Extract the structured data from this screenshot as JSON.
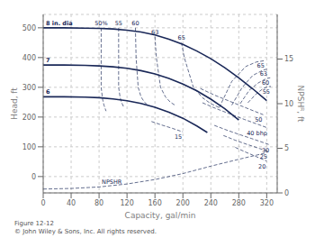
{
  "chart_data": {
    "type": "line",
    "xlabel": "Capacity, gal/min",
    "ylabel": "Head, ft",
    "y2label": "NPSHᴿ, ft",
    "caption": "Figure 12-12\n© John Wiley & Sons, Inc. All rights reserved.",
    "xlim": [
      0,
      335
    ],
    "ylim": [
      -55,
      545
    ],
    "xticks": [
      0,
      40,
      80,
      120,
      160,
      200,
      240,
      280,
      320
    ],
    "yticks": [
      0,
      100,
      200,
      300,
      400,
      500
    ],
    "y2lim": [
      0,
      20
    ],
    "y2ticks": [
      0,
      5,
      10,
      15
    ],
    "grid": true,
    "color": "#1a2858",
    "series": [
      {
        "name": "8 in. dia",
        "line_style": "solid",
        "x": [
          0,
          30,
          60,
          80,
          100,
          120,
          140,
          160,
          180,
          200,
          220,
          240,
          260,
          280,
          300,
          320
        ],
        "values": [
          500,
          500,
          499,
          498,
          496,
          492,
          486,
          476,
          462,
          444,
          422,
          396,
          366,
          332,
          295,
          255
        ]
      },
      {
        "name": "7",
        "line_style": "solid",
        "x": [
          0,
          30,
          60,
          80,
          100,
          120,
          140,
          160,
          180,
          200,
          220,
          240,
          260,
          280
        ],
        "values": [
          375,
          375,
          374,
          372,
          369,
          364,
          356,
          345,
          330,
          311,
          288,
          260,
          228,
          190
        ]
      },
      {
        "name": "6",
        "line_style": "solid",
        "x": [
          0,
          30,
          60,
          80,
          100,
          120,
          140,
          160,
          180,
          200,
          220,
          235
        ],
        "values": [
          268,
          268,
          267,
          265,
          261,
          255,
          246,
          233,
          216,
          196,
          170,
          148
        ]
      },
      {
        "name": "50%",
        "line_style": "dashed",
        "x": [
          83,
          83,
          83,
          85,
          87,
          90
        ],
        "values": [
          500,
          400,
          300,
          260,
          240,
          220
        ]
      },
      {
        "name": "55",
        "line_style": "dashed",
        "x": [
          108,
          108,
          108,
          110,
          112,
          115
        ],
        "values": [
          500,
          400,
          300,
          268,
          250,
          235
        ]
      },
      {
        "name": "60",
        "line_style": "dashed",
        "x": [
          132,
          133,
          136,
          140,
          145,
          150
        ],
        "values": [
          500,
          400,
          300,
          268,
          250,
          240
        ]
      },
      {
        "name": "63",
        "line_style": "dashed",
        "x": [
          160,
          162,
          168,
          175,
          182,
          190
        ],
        "values": [
          470,
          400,
          300,
          268,
          250,
          238
        ]
      },
      {
        "name": "65",
        "line_style": "dashed",
        "x": [
          198,
          202,
          215,
          228,
          240,
          252
        ],
        "values": [
          450,
          400,
          300,
          265,
          245,
          232
        ]
      },
      {
        "name": "65",
        "line_style": "dashed",
        "x": [
          252,
          270,
          290,
          305,
          318
        ],
        "values": [
          232,
          320,
          370,
          385,
          390
        ]
      },
      {
        "name": "63",
        "line_style": "dashed",
        "x": [
          270,
          285,
          300,
          315,
          322
        ],
        "values": [
          240,
          300,
          340,
          358,
          362
        ]
      },
      {
        "name": "60",
        "line_style": "dashed",
        "x": [
          282,
          295,
          308,
          320,
          325
        ],
        "values": [
          245,
          290,
          315,
          330,
          332
        ]
      },
      {
        "name": "55",
        "line_style": "dashed",
        "x": [
          293,
          305,
          315,
          322,
          326
        ],
        "values": [
          248,
          278,
          296,
          302,
          303
        ]
      },
      {
        "name": "15",
        "line_style": "dashed",
        "x": [
          155,
          170,
          185,
          200
        ],
        "values": [
          185,
          173,
          162,
          150
        ]
      },
      {
        "name": "20",
        "line_style": "dashed",
        "x": [
          275,
          290,
          305,
          320
        ],
        "values": [
          98,
          82,
          67,
          52
        ]
      },
      {
        "name": "25",
        "line_style": "dashed",
        "x": [
          258,
          275,
          292,
          310,
          322
        ],
        "values": [
          138,
          122,
          108,
          94,
          85
        ]
      },
      {
        "name": "30",
        "line_style": "dashed",
        "x": [
          245,
          263,
          280,
          298,
          318,
          325
        ],
        "values": [
          172,
          156,
          142,
          128,
          112,
          106
        ]
      },
      {
        "name": "40 bhp",
        "line_style": "dashed",
        "x": [
          228,
          248,
          268,
          288,
          308,
          322
        ],
        "values": [
          248,
          228,
          210,
          192,
          175,
          163
        ]
      },
      {
        "name": "50",
        "line_style": "dashed",
        "x": [
          225,
          245,
          265,
          285,
          302,
          315
        ],
        "values": [
          296,
          274,
          255,
          236,
          220,
          208
        ]
      },
      {
        "name": "NPSHR",
        "line_style": "dashed",
        "x": [
          0,
          40,
          80,
          120,
          160,
          200,
          240,
          280,
          320
        ],
        "values": [
          -42,
          -40,
          -35,
          -25,
          -10,
          10,
          35,
          58,
          80
        ]
      }
    ]
  }
}
